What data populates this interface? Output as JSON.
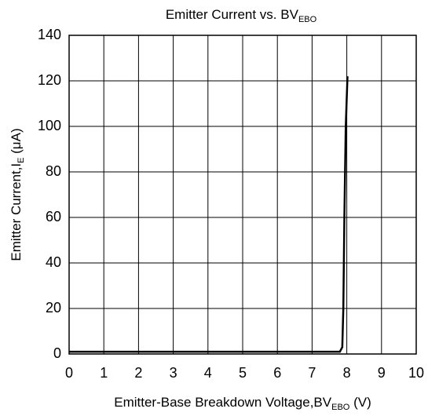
{
  "chart_data": {
    "type": "line",
    "title": {
      "text": "Emitter Current vs. BV",
      "sub": "EBO"
    },
    "x_label": {
      "text": "Emitter-Base Breakdown Voltage,BV",
      "sub": "EBO",
      "unit": " (V)"
    },
    "y_label": {
      "text": "Emitter Current,I",
      "sub": "E",
      "unit": " (μA)"
    },
    "x": [
      0,
      7.8,
      7.87,
      7.9,
      7.93,
      7.97,
      8.02
    ],
    "series": [
      {
        "color": "#000000",
        "values": [
          1,
          1,
          3,
          20,
          60,
          100,
          122
        ]
      }
    ],
    "xlim": [
      0,
      10
    ],
    "xticks": [
      0,
      1,
      2,
      3,
      4,
      5,
      6,
      7,
      8,
      9,
      10
    ],
    "ylim": [
      0,
      140
    ],
    "yticks": [
      0,
      20,
      40,
      60,
      80,
      100,
      120,
      140
    ],
    "grid": true
  }
}
